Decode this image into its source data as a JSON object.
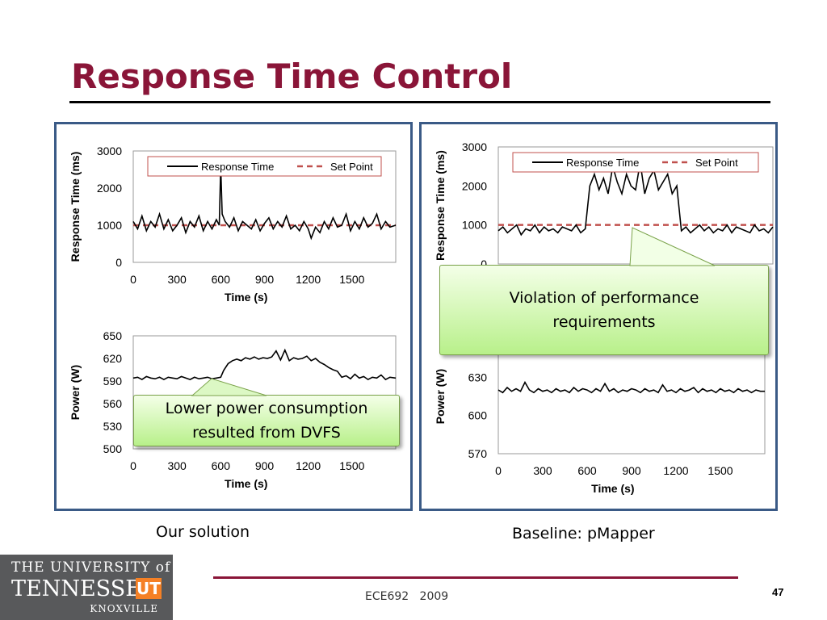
{
  "slide": {
    "title": "Response Time Control",
    "left_caption": "Our solution",
    "right_caption": "Baseline: pMapper",
    "footer": "ECE692   2009",
    "page_number": "47",
    "callout_left": "Lower power consumption resulted from DVFS",
    "callout_right": "Violation of performance requirements",
    "logo": {
      "line1": "THE UNIVERSITY of",
      "line2": "TENNESSEE",
      "mark": "UT",
      "line3": "KNOXVILLE"
    }
  },
  "colors": {
    "title": "#8a1538",
    "panel_border": "#3a5a86",
    "series": "#000000",
    "setpoint": "#c0504d"
  },
  "chart_data": [
    {
      "id": "left_response",
      "type": "line",
      "xlabel": "Time (s)",
      "ylabel": "Response Time (ms)",
      "xlim": [
        0,
        1800
      ],
      "ylim": [
        0,
        3000
      ],
      "xticks": [
        0,
        300,
        600,
        900,
        1200,
        1500
      ],
      "yticks": [
        0,
        1000,
        2000,
        3000
      ],
      "legend": [
        "Response Time",
        "Set Point"
      ],
      "legend_position": "top",
      "setpoint": 1000,
      "series": [
        {
          "name": "Response Time",
          "x": [
            0,
            30,
            60,
            90,
            120,
            150,
            180,
            210,
            240,
            270,
            300,
            330,
            360,
            390,
            420,
            450,
            480,
            510,
            540,
            570,
            590,
            600,
            610,
            630,
            660,
            690,
            720,
            750,
            780,
            810,
            840,
            870,
            900,
            930,
            960,
            990,
            1020,
            1050,
            1080,
            1110,
            1140,
            1170,
            1200,
            1220,
            1250,
            1280,
            1310,
            1340,
            1370,
            1400,
            1430,
            1460,
            1490,
            1520,
            1550,
            1580,
            1610,
            1640,
            1670,
            1700,
            1730,
            1760,
            1800
          ],
          "y": [
            1100,
            900,
            1250,
            850,
            1100,
            950,
            1300,
            900,
            1150,
            850,
            1000,
            1200,
            800,
            1100,
            950,
            1250,
            850,
            1100,
            900,
            1150,
            1000,
            2600,
            1300,
            1100,
            950,
            1200,
            850,
            1100,
            1000,
            900,
            1150,
            850,
            1050,
            1200,
            900,
            1100,
            950,
            1250,
            900,
            1000,
            850,
            1100,
            900,
            650,
            950,
            800,
            1100,
            900,
            1200,
            950,
            1000,
            1300,
            850,
            1100,
            900,
            1200,
            950,
            1050,
            1300,
            900,
            1100,
            950,
            1000
          ]
        }
      ]
    },
    {
      "id": "left_power",
      "type": "line",
      "xlabel": "Time (s)",
      "ylabel": "Power (W)",
      "xlim": [
        0,
        1800
      ],
      "ylim": [
        500,
        650
      ],
      "xticks": [
        0,
        300,
        600,
        900,
        1200,
        1500
      ],
      "yticks": [
        500,
        530,
        560,
        590,
        620,
        650
      ],
      "series": [
        {
          "name": "Power",
          "x": [
            0,
            30,
            60,
            90,
            120,
            150,
            180,
            210,
            240,
            270,
            300,
            330,
            360,
            390,
            420,
            450,
            480,
            510,
            540,
            570,
            600,
            620,
            650,
            680,
            710,
            740,
            770,
            800,
            830,
            860,
            890,
            920,
            950,
            980,
            1010,
            1040,
            1070,
            1100,
            1130,
            1160,
            1190,
            1220,
            1250,
            1280,
            1310,
            1340,
            1370,
            1400,
            1430,
            1460,
            1490,
            1520,
            1550,
            1580,
            1610,
            1640,
            1670,
            1700,
            1730,
            1760,
            1800
          ],
          "y": [
            594,
            595,
            592,
            596,
            594,
            593,
            595,
            592,
            595,
            594,
            593,
            596,
            594,
            592,
            595,
            593,
            594,
            595,
            593,
            594,
            595,
            604,
            613,
            617,
            619,
            617,
            621,
            619,
            622,
            619,
            621,
            620,
            622,
            630,
            618,
            631,
            617,
            621,
            619,
            620,
            623,
            617,
            620,
            615,
            612,
            608,
            605,
            603,
            595,
            597,
            593,
            599,
            594,
            596,
            592,
            595,
            594,
            598,
            592,
            595,
            594
          ]
        }
      ]
    },
    {
      "id": "right_response",
      "type": "line",
      "xlabel": "Time (s)",
      "ylabel": "Response Time (ms)",
      "xlim": [
        0,
        1800
      ],
      "ylim": [
        0,
        3000
      ],
      "xticks": [
        0,
        300,
        600,
        900,
        1200,
        1500
      ],
      "yticks": [
        0,
        1000,
        2000,
        3000
      ],
      "legend": [
        "Response Time",
        "Set Point"
      ],
      "legend_position": "top",
      "setpoint": 1000,
      "series": [
        {
          "name": "Response Time",
          "x": [
            0,
            30,
            60,
            90,
            120,
            150,
            180,
            210,
            240,
            270,
            300,
            330,
            360,
            390,
            420,
            450,
            480,
            510,
            540,
            570,
            600,
            630,
            660,
            690,
            720,
            750,
            780,
            810,
            840,
            870,
            900,
            930,
            960,
            990,
            1020,
            1050,
            1080,
            1110,
            1140,
            1170,
            1200,
            1230,
            1260,
            1290,
            1320,
            1350,
            1380,
            1410,
            1440,
            1470,
            1500,
            1530,
            1560,
            1590,
            1620,
            1650,
            1680,
            1710,
            1740,
            1770,
            1800
          ],
          "y": [
            850,
            950,
            800,
            900,
            1000,
            750,
            900,
            850,
            1000,
            800,
            950,
            850,
            900,
            800,
            950,
            900,
            850,
            1000,
            800,
            900,
            2000,
            2300,
            1900,
            2200,
            1800,
            2500,
            2100,
            1800,
            2300,
            2000,
            1900,
            2600,
            1800,
            2200,
            2400,
            1900,
            2100,
            2300,
            1800,
            2000,
            850,
            950,
            800,
            900,
            1000,
            850,
            950,
            800,
            900,
            850,
            1000,
            800,
            950,
            900,
            850,
            800,
            1000,
            850,
            900,
            800,
            950
          ]
        }
      ]
    },
    {
      "id": "right_power",
      "type": "line",
      "xlabel": "Time (s)",
      "ylabel": "Power (W)",
      "xlim": [
        0,
        1800
      ],
      "ylim": [
        570,
        660
      ],
      "xticks": [
        0,
        300,
        600,
        900,
        1200,
        1500
      ],
      "yticks": [
        570,
        600,
        630
      ],
      "series": [
        {
          "name": "Power",
          "x": [
            0,
            30,
            60,
            90,
            120,
            150,
            180,
            210,
            240,
            270,
            300,
            330,
            360,
            390,
            420,
            450,
            480,
            510,
            540,
            570,
            600,
            630,
            660,
            690,
            720,
            750,
            780,
            810,
            840,
            870,
            900,
            930,
            960,
            990,
            1020,
            1050,
            1080,
            1110,
            1140,
            1170,
            1200,
            1230,
            1260,
            1290,
            1320,
            1350,
            1380,
            1410,
            1440,
            1470,
            1500,
            1530,
            1560,
            1590,
            1620,
            1650,
            1680,
            1710,
            1740,
            1770,
            1800
          ],
          "y": [
            620,
            618,
            622,
            619,
            621,
            619,
            626,
            620,
            618,
            621,
            619,
            620,
            618,
            621,
            619,
            620,
            618,
            622,
            619,
            621,
            620,
            618,
            621,
            619,
            625,
            619,
            621,
            618,
            620,
            619,
            621,
            620,
            618,
            621,
            619,
            620,
            618,
            624,
            619,
            620,
            618,
            621,
            619,
            620,
            622,
            618,
            621,
            619,
            620,
            618,
            621,
            619,
            620,
            618,
            621,
            619,
            620,
            618,
            620,
            619,
            619
          ]
        }
      ]
    }
  ]
}
